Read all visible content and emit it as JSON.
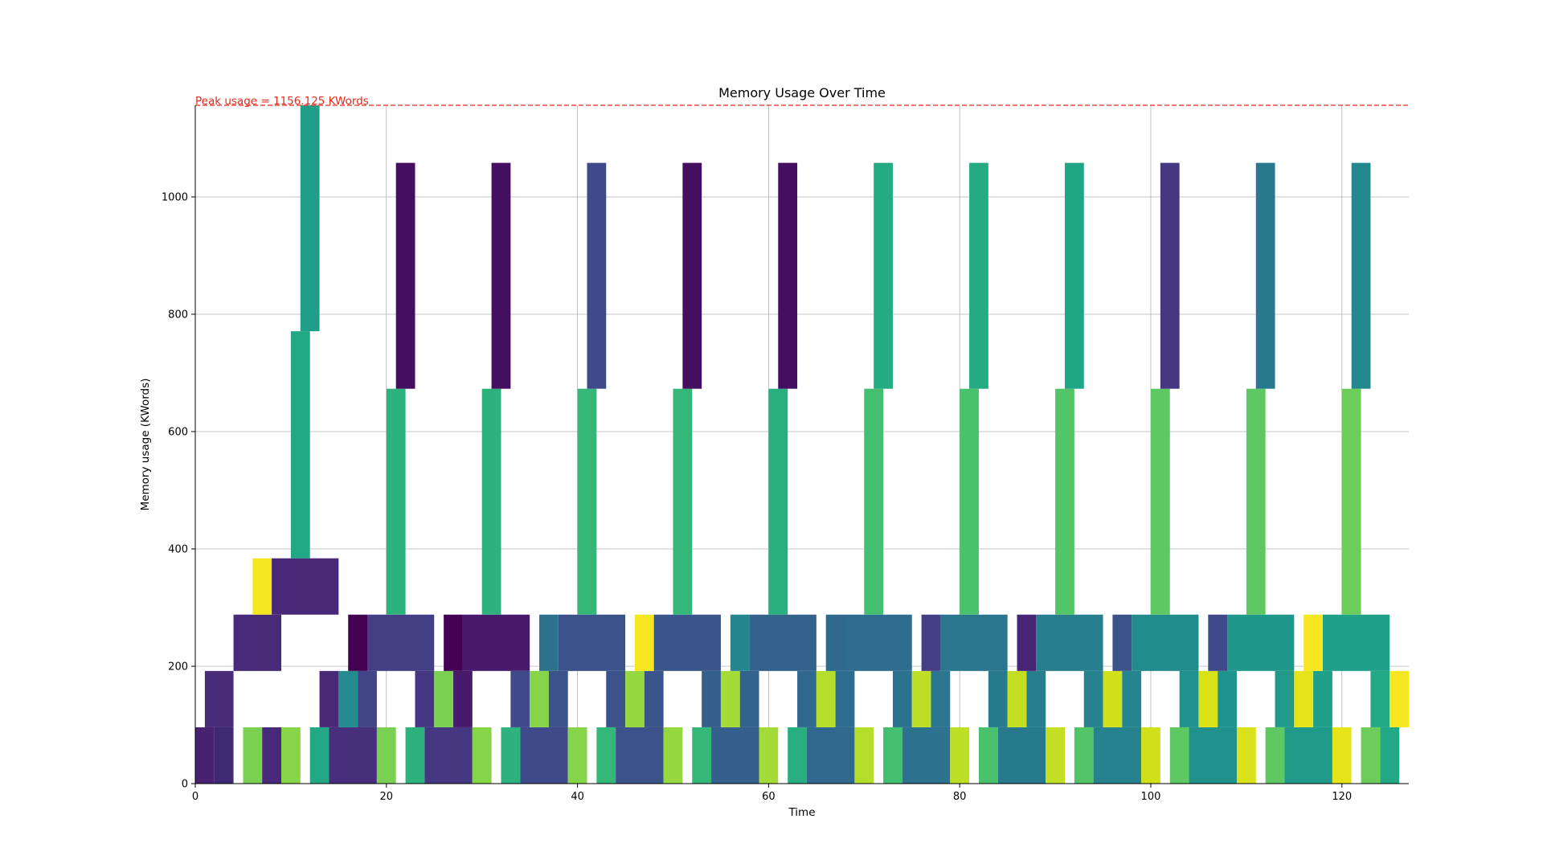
{
  "chart_data": {
    "type": "bar",
    "title": "Memory Usage Over Time",
    "xlabel": "Time",
    "ylabel": "Memory usage (KWords)",
    "xlim": [
      0,
      127
    ],
    "ylim": [
      0,
      1156.125
    ],
    "x_ticks": [
      0,
      20,
      40,
      60,
      80,
      100,
      120
    ],
    "y_ticks": [
      0,
      200,
      400,
      600,
      800,
      1000
    ],
    "grid": true,
    "peak": {
      "value": 1156.125,
      "label": "Peak usage = 1156.125 KWords",
      "color": "#e8291c"
    },
    "blocks": [
      {
        "x0": 0,
        "x1": 2,
        "y0": 0,
        "y1": 96,
        "color": "#482173"
      },
      {
        "x0": 2,
        "x1": 4,
        "y0": 0,
        "y1": 96,
        "color": "#3e2a74"
      },
      {
        "x0": 1,
        "x1": 4,
        "y0": 96,
        "y1": 192,
        "color": "#472a7a"
      },
      {
        "x0": 4,
        "x1": 9,
        "y0": 192,
        "y1": 288,
        "color": "#472a7a"
      },
      {
        "x0": 6,
        "x1": 8,
        "y0": 288,
        "y1": 384,
        "color": "#f5e61f"
      },
      {
        "x0": 8,
        "x1": 15,
        "y0": 288,
        "y1": 384,
        "color": "#482878"
      },
      {
        "x0": 5,
        "x1": 7,
        "y0": 0,
        "y1": 96,
        "color": "#7ad151"
      },
      {
        "x0": 7,
        "x1": 9,
        "y0": 0,
        "y1": 96,
        "color": "#482878"
      },
      {
        "x0": 9,
        "x1": 11,
        "y0": 0,
        "y1": 96,
        "color": "#86d549"
      },
      {
        "x0": 10,
        "x1": 12,
        "y0": 384,
        "y1": 771,
        "color": "#22a884"
      },
      {
        "x0": 11,
        "x1": 13,
        "y0": 771,
        "y1": 1156.125,
        "color": "#1f9e89"
      },
      {
        "x0": 12,
        "x1": 14,
        "y0": 0,
        "y1": 96,
        "color": "#22a884"
      },
      {
        "x0": 14,
        "x1": 19,
        "y0": 0,
        "y1": 96,
        "color": "#472f7d"
      },
      {
        "x0": 13,
        "x1": 15,
        "y0": 96,
        "y1": 192,
        "color": "#482878"
      },
      {
        "x0": 15,
        "x1": 17,
        "y0": 96,
        "y1": 192,
        "color": "#238a8d"
      },
      {
        "x0": 17,
        "x1": 19,
        "y0": 96,
        "y1": 192,
        "color": "#414487"
      },
      {
        "x0": 16,
        "x1": 18,
        "y0": 192,
        "y1": 288,
        "color": "#440154"
      },
      {
        "x0": 18,
        "x1": 25,
        "y0": 192,
        "y1": 288,
        "color": "#433e85"
      },
      {
        "x0": 19,
        "x1": 21,
        "y0": 0,
        "y1": 96,
        "color": "#7ad151"
      },
      {
        "x0": 20,
        "x1": 22,
        "y0": 288,
        "y1": 673,
        "color": "#2db27d"
      },
      {
        "x0": 21,
        "x1": 23,
        "y0": 673,
        "y1": 1058,
        "color": "#440f60"
      },
      {
        "x0": 22,
        "x1": 24,
        "y0": 0,
        "y1": 96,
        "color": "#2db27d"
      },
      {
        "x0": 24,
        "x1": 29,
        "y0": 0,
        "y1": 96,
        "color": "#453781"
      },
      {
        "x0": 23,
        "x1": 25,
        "y0": 96,
        "y1": 192,
        "color": "#453781"
      },
      {
        "x0": 25,
        "x1": 27,
        "y0": 96,
        "y1": 192,
        "color": "#7ad151"
      },
      {
        "x0": 27,
        "x1": 29,
        "y0": 96,
        "y1": 192,
        "color": "#481a6c"
      },
      {
        "x0": 26,
        "x1": 28,
        "y0": 192,
        "y1": 288,
        "color": "#440154"
      },
      {
        "x0": 28,
        "x1": 35,
        "y0": 192,
        "y1": 288,
        "color": "#481a6c"
      },
      {
        "x0": 29,
        "x1": 31,
        "y0": 0,
        "y1": 96,
        "color": "#86d549"
      },
      {
        "x0": 30,
        "x1": 32,
        "y0": 288,
        "y1": 673,
        "color": "#2db27d"
      },
      {
        "x0": 31,
        "x1": 33,
        "y0": 673,
        "y1": 1058,
        "color": "#440f60"
      },
      {
        "x0": 32,
        "x1": 34,
        "y0": 0,
        "y1": 96,
        "color": "#2db27d"
      },
      {
        "x0": 34,
        "x1": 39,
        "y0": 0,
        "y1": 96,
        "color": "#3e4a89"
      },
      {
        "x0": 33,
        "x1": 35,
        "y0": 96,
        "y1": 192,
        "color": "#3e4a89"
      },
      {
        "x0": 35,
        "x1": 37,
        "y0": 96,
        "y1": 192,
        "color": "#86d549"
      },
      {
        "x0": 37,
        "x1": 39,
        "y0": 96,
        "y1": 192,
        "color": "#3b528b"
      },
      {
        "x0": 36,
        "x1": 38,
        "y0": 192,
        "y1": 288,
        "color": "#2c728e"
      },
      {
        "x0": 38,
        "x1": 45,
        "y0": 192,
        "y1": 288,
        "color": "#3b528b"
      },
      {
        "x0": 39,
        "x1": 41,
        "y0": 0,
        "y1": 96,
        "color": "#86d549"
      },
      {
        "x0": 40,
        "x1": 42,
        "y0": 288,
        "y1": 673,
        "color": "#35b779"
      },
      {
        "x0": 41,
        "x1": 43,
        "y0": 673,
        "y1": 1058,
        "color": "#3e4a89"
      },
      {
        "x0": 42,
        "x1": 44,
        "y0": 0,
        "y1": 96,
        "color": "#35b779"
      },
      {
        "x0": 44,
        "x1": 49,
        "y0": 0,
        "y1": 96,
        "color": "#3b528b"
      },
      {
        "x0": 43,
        "x1": 45,
        "y0": 96,
        "y1": 192,
        "color": "#3b528b"
      },
      {
        "x0": 45,
        "x1": 47,
        "y0": 96,
        "y1": 192,
        "color": "#95d840"
      },
      {
        "x0": 47,
        "x1": 49,
        "y0": 96,
        "y1": 192,
        "color": "#3a548c"
      },
      {
        "x0": 46,
        "x1": 48,
        "y0": 192,
        "y1": 288,
        "color": "#f5e61f"
      },
      {
        "x0": 48,
        "x1": 55,
        "y0": 192,
        "y1": 288,
        "color": "#3a548c"
      },
      {
        "x0": 49,
        "x1": 51,
        "y0": 0,
        "y1": 96,
        "color": "#95d840"
      },
      {
        "x0": 50,
        "x1": 52,
        "y0": 288,
        "y1": 673,
        "color": "#35b779"
      },
      {
        "x0": 51,
        "x1": 53,
        "y0": 673,
        "y1": 1058,
        "color": "#440f60"
      },
      {
        "x0": 52,
        "x1": 54,
        "y0": 0,
        "y1": 96,
        "color": "#35b779"
      },
      {
        "x0": 54,
        "x1": 59,
        "y0": 0,
        "y1": 96,
        "color": "#355f8d"
      },
      {
        "x0": 53,
        "x1": 55,
        "y0": 96,
        "y1": 192,
        "color": "#355f8d"
      },
      {
        "x0": 55,
        "x1": 57,
        "y0": 96,
        "y1": 192,
        "color": "#a5db36"
      },
      {
        "x0": 57,
        "x1": 59,
        "y0": 96,
        "y1": 192,
        "color": "#33638d"
      },
      {
        "x0": 56,
        "x1": 58,
        "y0": 192,
        "y1": 288,
        "color": "#24868e"
      },
      {
        "x0": 58,
        "x1": 65,
        "y0": 192,
        "y1": 288,
        "color": "#33638d"
      },
      {
        "x0": 59,
        "x1": 61,
        "y0": 0,
        "y1": 96,
        "color": "#a5db36"
      },
      {
        "x0": 60,
        "x1": 62,
        "y0": 288,
        "y1": 673,
        "color": "#29af7f"
      },
      {
        "x0": 61,
        "x1": 63,
        "y0": 673,
        "y1": 1058,
        "color": "#440f60"
      },
      {
        "x0": 62,
        "x1": 64,
        "y0": 0,
        "y1": 96,
        "color": "#29af7f"
      },
      {
        "x0": 64,
        "x1": 69,
        "y0": 0,
        "y1": 96,
        "color": "#31688e"
      },
      {
        "x0": 63,
        "x1": 65,
        "y0": 96,
        "y1": 192,
        "color": "#31688e"
      },
      {
        "x0": 65,
        "x1": 67,
        "y0": 96,
        "y1": 192,
        "color": "#b5de2b"
      },
      {
        "x0": 67,
        "x1": 69,
        "y0": 96,
        "y1": 192,
        "color": "#2e6d8e"
      },
      {
        "x0": 66,
        "x1": 68,
        "y0": 192,
        "y1": 288,
        "color": "#31688e"
      },
      {
        "x0": 68,
        "x1": 75,
        "y0": 192,
        "y1": 288,
        "color": "#2e6d8e"
      },
      {
        "x0": 69,
        "x1": 71,
        "y0": 0,
        "y1": 96,
        "color": "#b5de2b"
      },
      {
        "x0": 70,
        "x1": 72,
        "y0": 288,
        "y1": 673,
        "color": "#44bf70"
      },
      {
        "x0": 71,
        "x1": 73,
        "y0": 673,
        "y1": 1058,
        "color": "#25ab82"
      },
      {
        "x0": 72,
        "x1": 74,
        "y0": 0,
        "y1": 96,
        "color": "#44bf70"
      },
      {
        "x0": 74,
        "x1": 79,
        "y0": 0,
        "y1": 96,
        "color": "#2c718e"
      },
      {
        "x0": 73,
        "x1": 75,
        "y0": 96,
        "y1": 192,
        "color": "#2c718e"
      },
      {
        "x0": 75,
        "x1": 77,
        "y0": 96,
        "y1": 192,
        "color": "#bddf26"
      },
      {
        "x0": 77,
        "x1": 79,
        "y0": 96,
        "y1": 192,
        "color": "#2a768e"
      },
      {
        "x0": 76,
        "x1": 78,
        "y0": 192,
        "y1": 288,
        "color": "#433e85"
      },
      {
        "x0": 78,
        "x1": 85,
        "y0": 192,
        "y1": 288,
        "color": "#2a768e"
      },
      {
        "x0": 79,
        "x1": 81,
        "y0": 0,
        "y1": 96,
        "color": "#bddf26"
      },
      {
        "x0": 80,
        "x1": 82,
        "y0": 288,
        "y1": 673,
        "color": "#4ac16d"
      },
      {
        "x0": 81,
        "x1": 83,
        "y0": 673,
        "y1": 1058,
        "color": "#25ab82"
      },
      {
        "x0": 82,
        "x1": 84,
        "y0": 0,
        "y1": 96,
        "color": "#4ac16d"
      },
      {
        "x0": 84,
        "x1": 89,
        "y0": 0,
        "y1": 96,
        "color": "#29798e"
      },
      {
        "x0": 83,
        "x1": 85,
        "y0": 96,
        "y1": 192,
        "color": "#29798e"
      },
      {
        "x0": 85,
        "x1": 87,
        "y0": 96,
        "y1": 192,
        "color": "#c2df23"
      },
      {
        "x0": 87,
        "x1": 89,
        "y0": 96,
        "y1": 192,
        "color": "#277f8e"
      },
      {
        "x0": 86,
        "x1": 88,
        "y0": 192,
        "y1": 288,
        "color": "#482475"
      },
      {
        "x0": 88,
        "x1": 95,
        "y0": 192,
        "y1": 288,
        "color": "#277f8e"
      },
      {
        "x0": 89,
        "x1": 91,
        "y0": 0,
        "y1": 96,
        "color": "#c2df23"
      },
      {
        "x0": 90,
        "x1": 92,
        "y0": 288,
        "y1": 673,
        "color": "#52c569"
      },
      {
        "x0": 91,
        "x1": 93,
        "y0": 673,
        "y1": 1058,
        "color": "#21a685"
      },
      {
        "x0": 92,
        "x1": 94,
        "y0": 0,
        "y1": 96,
        "color": "#52c569"
      },
      {
        "x0": 94,
        "x1": 99,
        "y0": 0,
        "y1": 96,
        "color": "#26828e"
      },
      {
        "x0": 93,
        "x1": 95,
        "y0": 96,
        "y1": 192,
        "color": "#26828e"
      },
      {
        "x0": 95,
        "x1": 97,
        "y0": 96,
        "y1": 192,
        "color": "#d0e11c"
      },
      {
        "x0": 97,
        "x1": 99,
        "y0": 96,
        "y1": 192,
        "color": "#25858e"
      },
      {
        "x0": 96,
        "x1": 98,
        "y0": 192,
        "y1": 288,
        "color": "#3b528b"
      },
      {
        "x0": 98,
        "x1": 105,
        "y0": 192,
        "y1": 288,
        "color": "#228c8d"
      },
      {
        "x0": 99,
        "x1": 101,
        "y0": 0,
        "y1": 96,
        "color": "#d0e11c"
      },
      {
        "x0": 100,
        "x1": 102,
        "y0": 288,
        "y1": 673,
        "color": "#5ec962"
      },
      {
        "x0": 101,
        "x1": 103,
        "y0": 673,
        "y1": 1058,
        "color": "#453781"
      },
      {
        "x0": 102,
        "x1": 104,
        "y0": 0,
        "y1": 96,
        "color": "#5ec962"
      },
      {
        "x0": 104,
        "x1": 109,
        "y0": 0,
        "y1": 96,
        "color": "#21918c"
      },
      {
        "x0": 103,
        "x1": 105,
        "y0": 96,
        "y1": 192,
        "color": "#21918c"
      },
      {
        "x0": 105,
        "x1": 107,
        "y0": 96,
        "y1": 192,
        "color": "#dae319"
      },
      {
        "x0": 107,
        "x1": 109,
        "y0": 96,
        "y1": 192,
        "color": "#1f948c"
      },
      {
        "x0": 106,
        "x1": 108,
        "y0": 192,
        "y1": 288,
        "color": "#3e4a89"
      },
      {
        "x0": 108,
        "x1": 115,
        "y0": 192,
        "y1": 288,
        "color": "#1f988b"
      },
      {
        "x0": 109,
        "x1": 111,
        "y0": 0,
        "y1": 96,
        "color": "#dae319"
      },
      {
        "x0": 110,
        "x1": 112,
        "y0": 288,
        "y1": 673,
        "color": "#5ec962"
      },
      {
        "x0": 111,
        "x1": 113,
        "y0": 673,
        "y1": 1058,
        "color": "#2a788e"
      },
      {
        "x0": 112,
        "x1": 114,
        "y0": 0,
        "y1": 96,
        "color": "#5ec962"
      },
      {
        "x0": 114,
        "x1": 119,
        "y0": 0,
        "y1": 96,
        "color": "#1f9a8a"
      },
      {
        "x0": 113,
        "x1": 115,
        "y0": 96,
        "y1": 192,
        "color": "#1f9a8a"
      },
      {
        "x0": 115,
        "x1": 117,
        "y0": 96,
        "y1": 192,
        "color": "#e5e419"
      },
      {
        "x0": 117,
        "x1": 119,
        "y0": 96,
        "y1": 192,
        "color": "#1fa088"
      },
      {
        "x0": 116,
        "x1": 118,
        "y0": 192,
        "y1": 288,
        "color": "#f5e61f"
      },
      {
        "x0": 118,
        "x1": 125,
        "y0": 192,
        "y1": 288,
        "color": "#1fa088"
      },
      {
        "x0": 119,
        "x1": 121,
        "y0": 0,
        "y1": 96,
        "color": "#e5e419"
      },
      {
        "x0": 120,
        "x1": 122,
        "y0": 288,
        "y1": 673,
        "color": "#6ccd5a"
      },
      {
        "x0": 121,
        "x1": 123,
        "y0": 673,
        "y1": 1058,
        "color": "#23898e"
      },
      {
        "x0": 122,
        "x1": 124,
        "y0": 0,
        "y1": 96,
        "color": "#6ccd5a"
      },
      {
        "x0": 124,
        "x1": 126,
        "y0": 0,
        "y1": 96,
        "color": "#22a884"
      },
      {
        "x0": 123,
        "x1": 125,
        "y0": 96,
        "y1": 192,
        "color": "#22a884"
      },
      {
        "x0": 125,
        "x1": 127,
        "y0": 96,
        "y1": 192,
        "color": "#f5e61f"
      }
    ]
  }
}
